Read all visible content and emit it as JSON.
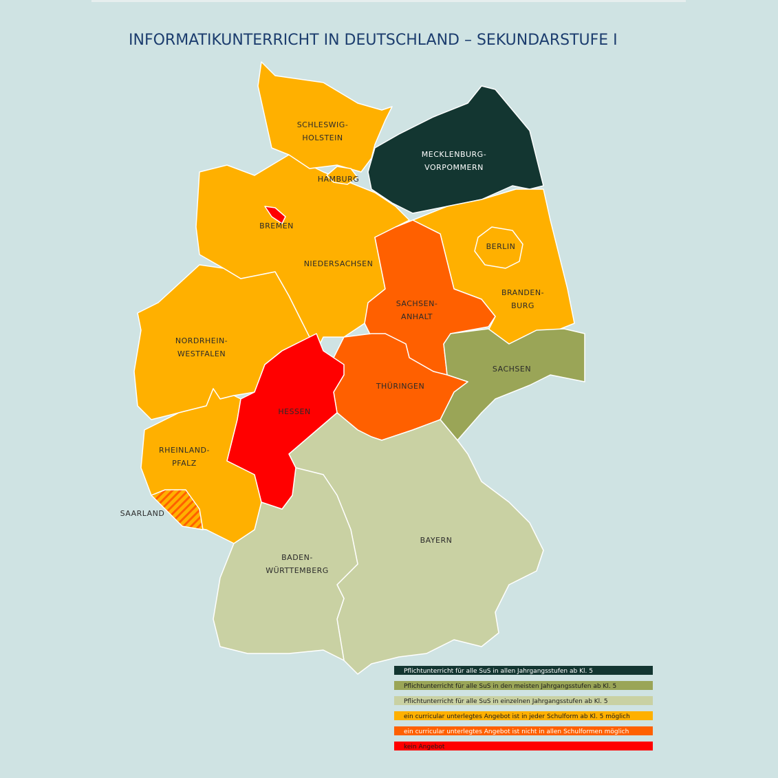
{
  "title": "INFORMATIKUNTERRICHT IN DEUTSCHLAND – SEKUNDARSTUFE I",
  "states": [
    {
      "lines": [
        "SCHLESWIG-",
        "HOLSTEIN"
      ],
      "color": "#ffb000"
    },
    {
      "lines": [
        "MECKLENBURG-",
        "VORPOMMERN"
      ],
      "color": "#133631"
    },
    {
      "lines": [
        "HAMBURG"
      ],
      "color": "#ffb000"
    },
    {
      "lines": [
        "BREMEN"
      ],
      "color": "#ff0000"
    },
    {
      "lines": [
        "NIEDERSACHSEN"
      ],
      "color": "#ffb000"
    },
    {
      "lines": [
        "BERLIN"
      ],
      "color": "#ffb000"
    },
    {
      "lines": [
        "BRANDEN-",
        "BURG"
      ],
      "color": "#ffb000"
    },
    {
      "lines": [
        "SACHSEN-",
        "ANHALT"
      ],
      "color": "#ff6000"
    },
    {
      "lines": [
        "NORDRHEIN-",
        "WESTFALEN"
      ],
      "color": "#ffb000"
    },
    {
      "lines": [
        "SACHSEN"
      ],
      "color": "#9aa557"
    },
    {
      "lines": [
        "THÜRINGEN"
      ],
      "color": "#ff6000"
    },
    {
      "lines": [
        "HESSEN"
      ],
      "color": "#ff0000"
    },
    {
      "lines": [
        "RHEINLAND-",
        "PFALZ"
      ],
      "color": "#ffb000"
    },
    {
      "lines": [
        "SAARLAND"
      ],
      "color": "#ff6000",
      "hatched": true
    },
    {
      "lines": [
        "BAYERN"
      ],
      "color": "#c9d1a3"
    },
    {
      "lines": [
        "BADEN-",
        "WÜRTTEMBERG"
      ],
      "color": "#c9d1a3"
    }
  ],
  "legend": [
    {
      "label": "Pflichtunterricht für alle SuS in allen Jahrgangsstufen ab Kl. 5",
      "color": "#133631",
      "text_color": "#ffffff"
    },
    {
      "label": "Pflichtunterricht für alle SuS in den meisten Jahrgangsstufen ab Kl. 5",
      "color": "#9aa557",
      "text_color": "#1a1a1a"
    },
    {
      "label": "Pflichtunterricht für alle SuS in einzelnen Jahrgangsstufen ab Kl. 5",
      "color": "#c9d1a3",
      "text_color": "#1a1a1a"
    },
    {
      "label": "ein curricular unterlegtes Angebot ist in jeder Schulform ab Kl. 5 möglich",
      "color": "#ffb000",
      "text_color": "#1a1a1a"
    },
    {
      "label": "ein curricular unterlegtes Angebot ist nicht in allen Schulformen möglich",
      "color": "#ff6000",
      "text_color": "#ffffff"
    },
    {
      "label": "kein Angebot",
      "color": "#ff0000",
      "text_color": "#1a1a1a"
    }
  ]
}
